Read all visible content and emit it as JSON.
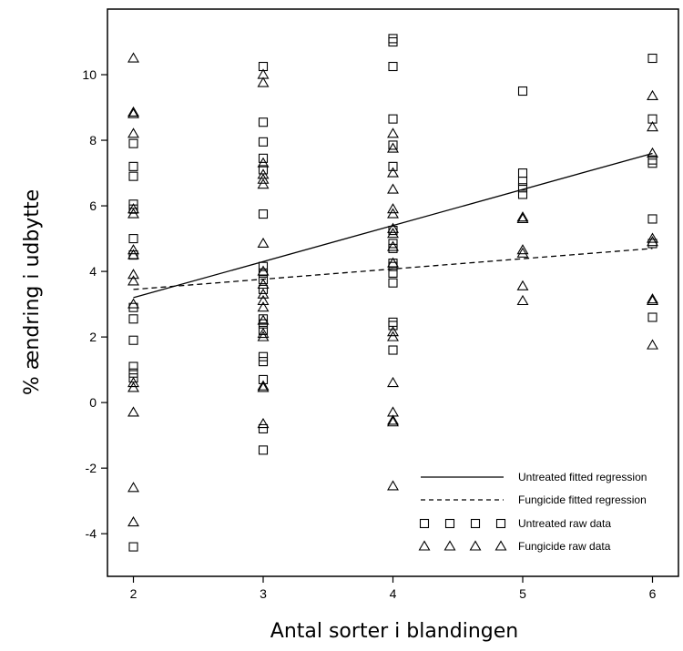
{
  "chart_data": {
    "type": "scatter",
    "xlabel": "Antal sorter i blandingen",
    "ylabel": "% ændring i udbytte",
    "xlim": [
      1.8,
      6.2
    ],
    "ylim": [
      -5.3,
      12.0
    ],
    "x_ticks": [
      2,
      3,
      4,
      5,
      6
    ],
    "y_ticks": [
      -4,
      -2,
      0,
      2,
      4,
      6,
      8,
      10
    ],
    "grid": false,
    "legend_position": "bottom-right",
    "series": [
      {
        "name": "Untreated fitted regression",
        "kind": "line",
        "style": "solid",
        "x": [
          2,
          6
        ],
        "y": [
          3.2,
          7.6
        ]
      },
      {
        "name": "Fungicide fitted regression",
        "kind": "line",
        "style": "dashed",
        "x": [
          2,
          6
        ],
        "y": [
          3.45,
          4.7
        ]
      },
      {
        "name": "Untreated raw data",
        "kind": "scatter",
        "marker": "square",
        "points": [
          [
            2,
            7.9
          ],
          [
            2,
            7.2
          ],
          [
            2,
            6.9
          ],
          [
            2,
            6.05
          ],
          [
            2,
            5.9
          ],
          [
            2,
            5.0
          ],
          [
            2,
            4.5
          ],
          [
            2,
            2.9
          ],
          [
            2,
            2.55
          ],
          [
            2,
            1.9
          ],
          [
            2,
            1.1
          ],
          [
            2,
            0.9
          ],
          [
            2,
            0.75
          ],
          [
            2,
            -4.4
          ],
          [
            3,
            10.25
          ],
          [
            3,
            8.55
          ],
          [
            3,
            7.95
          ],
          [
            3,
            7.45
          ],
          [
            3,
            7.1
          ],
          [
            3,
            5.75
          ],
          [
            3,
            4.15
          ],
          [
            3,
            3.95
          ],
          [
            3,
            3.75
          ],
          [
            3,
            3.45
          ],
          [
            3,
            2.55
          ],
          [
            3,
            2.4
          ],
          [
            3,
            2.2
          ],
          [
            3,
            1.4
          ],
          [
            3,
            1.25
          ],
          [
            3,
            0.7
          ],
          [
            3,
            -0.8
          ],
          [
            3,
            -1.45
          ],
          [
            4,
            11.1
          ],
          [
            4,
            11.0
          ],
          [
            4,
            10.25
          ],
          [
            4,
            8.65
          ],
          [
            4,
            7.85
          ],
          [
            4,
            7.2
          ],
          [
            4,
            5.25
          ],
          [
            4,
            4.85
          ],
          [
            4,
            4.7
          ],
          [
            4,
            4.25
          ],
          [
            4,
            4.15
          ],
          [
            4,
            3.95
          ],
          [
            4,
            3.65
          ],
          [
            4,
            2.45
          ],
          [
            4,
            2.35
          ],
          [
            4,
            1.6
          ],
          [
            5,
            9.5
          ],
          [
            5,
            7.0
          ],
          [
            5,
            6.75
          ],
          [
            5,
            6.55
          ],
          [
            5,
            6.35
          ],
          [
            6,
            10.5
          ],
          [
            6,
            8.65
          ],
          [
            6,
            7.4
          ],
          [
            6,
            7.3
          ],
          [
            6,
            5.6
          ],
          [
            6,
            4.85
          ],
          [
            6,
            2.6
          ]
        ]
      },
      {
        "name": "Fungicide raw data",
        "kind": "scatter",
        "marker": "triangle",
        "points": [
          [
            2,
            10.5
          ],
          [
            2,
            8.85
          ],
          [
            2,
            8.8
          ],
          [
            2,
            8.2
          ],
          [
            2,
            5.9
          ],
          [
            2,
            5.75
          ],
          [
            2,
            4.65
          ],
          [
            2,
            4.5
          ],
          [
            2,
            3.9
          ],
          [
            2,
            3.7
          ],
          [
            2,
            3.0
          ],
          [
            2,
            0.6
          ],
          [
            2,
            0.45
          ],
          [
            2,
            -0.3
          ],
          [
            2,
            -2.6
          ],
          [
            2,
            -3.65
          ],
          [
            3,
            10.0
          ],
          [
            3,
            9.75
          ],
          [
            3,
            7.3
          ],
          [
            3,
            6.95
          ],
          [
            3,
            6.8
          ],
          [
            3,
            6.65
          ],
          [
            3,
            4.85
          ],
          [
            3,
            4.0
          ],
          [
            3,
            3.6
          ],
          [
            3,
            3.3
          ],
          [
            3,
            3.1
          ],
          [
            3,
            2.9
          ],
          [
            3,
            2.5
          ],
          [
            3,
            2.1
          ],
          [
            3,
            2.0
          ],
          [
            3,
            0.5
          ],
          [
            3,
            0.45
          ],
          [
            3,
            -0.65
          ],
          [
            4,
            8.2
          ],
          [
            4,
            7.75
          ],
          [
            4,
            7.0
          ],
          [
            4,
            6.5
          ],
          [
            4,
            5.9
          ],
          [
            4,
            5.75
          ],
          [
            4,
            5.3
          ],
          [
            4,
            5.15
          ],
          [
            4,
            4.75
          ],
          [
            4,
            4.25
          ],
          [
            4,
            2.15
          ],
          [
            4,
            2.0
          ],
          [
            4,
            0.6
          ],
          [
            4,
            -0.3
          ],
          [
            4,
            -0.55
          ],
          [
            4,
            -0.6
          ],
          [
            4,
            -2.55
          ],
          [
            5,
            5.65
          ],
          [
            5,
            5.6
          ],
          [
            5,
            4.65
          ],
          [
            5,
            4.55
          ],
          [
            5,
            3.55
          ],
          [
            5,
            3.1
          ],
          [
            6,
            9.35
          ],
          [
            6,
            8.4
          ],
          [
            6,
            7.6
          ],
          [
            6,
            5.0
          ],
          [
            6,
            4.9
          ],
          [
            6,
            3.15
          ],
          [
            6,
            3.1
          ],
          [
            6,
            1.75
          ]
        ]
      }
    ],
    "legend": [
      {
        "label": "Untreated fitted regression",
        "kind": "solid"
      },
      {
        "label": "Fungicide fitted regression",
        "kind": "dashed"
      },
      {
        "label": "Untreated raw data",
        "kind": "square"
      },
      {
        "label": "Fungicide raw data",
        "kind": "triangle"
      }
    ]
  }
}
